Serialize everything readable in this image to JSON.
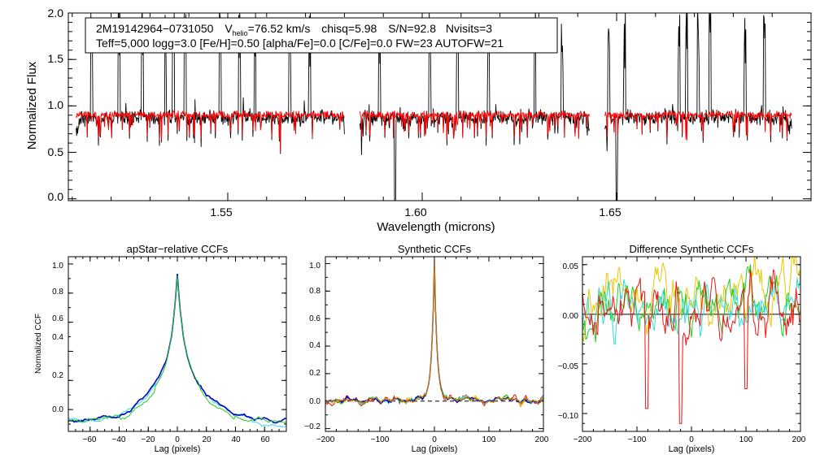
{
  "main_panel": {
    "ylabel": "Normalized Flux",
    "xlabel": "Wavelength (microns)",
    "ytick_labels": [
      "0.0",
      "0.5",
      "1.0",
      "1.5",
      "2.0"
    ],
    "xtick_labels": [
      "1.55",
      "1.60",
      "1.65"
    ],
    "info": {
      "star_id": "2M19142964−0731050",
      "v_prefix": "V",
      "v_sub": "helio",
      "v_value": "=76.52 km/s",
      "chisq": "chisq=5.98",
      "snr": "S/N=92.8",
      "nvisits": "Nvisits=3",
      "line2": "Teff=5,000 logg=3.0 [Fe/H]=0.50 [alpha/Fe]=0.0 [C/Fe]=0.0 FW=23 AUTOFW=21"
    }
  },
  "colors": {
    "observed": "#000000",
    "model": "#ff0000",
    "ccf_blue": "#0000cc",
    "ccf_green": "#22cc22",
    "ccf_cyan": "#33dddd",
    "ccf_yellow": "#e6c800",
    "ccf_orange": "#cc7a00",
    "ccf_red": "#ee1111"
  },
  "chart_data": [
    {
      "type": "line",
      "title": "",
      "xlabel": "Wavelength (microns)",
      "ylabel": "Normalized Flux",
      "xlim": [
        1.509,
        1.7
      ],
      "ylim": [
        -0.02,
        2.0
      ],
      "xticks": [
        1.55,
        1.6,
        1.65
      ],
      "yticks": [
        0.0,
        0.5,
        1.0,
        1.5,
        2.0
      ],
      "segments": [
        [
          1.511,
          1.58
        ],
        [
          1.584,
          1.643
        ],
        [
          1.647,
          1.695
        ]
      ],
      "series": [
        {
          "name": "observed",
          "color": "#000000",
          "continuum": 0.93
        },
        {
          "name": "model",
          "color": "#ff0000",
          "continuum": 0.96
        }
      ],
      "emission_spikes": [
        1.515,
        1.522,
        1.528,
        1.534,
        1.536,
        1.539,
        1.548,
        1.553,
        1.557,
        1.566,
        1.571,
        1.589,
        1.602,
        1.609,
        1.617,
        1.629,
        1.636,
        1.648,
        1.652,
        1.666,
        1.668,
        1.671,
        1.674,
        1.683,
        1.688
      ],
      "deep_absorption": [
        1.593,
        1.65
      ]
    },
    {
      "type": "line",
      "title": "apStar−relative CCFs",
      "xlabel": "Lag (pixels)",
      "ylabel": "Normalized CCF",
      "xlim": [
        -75,
        75
      ],
      "ylim": [
        -0.15,
        1.05
      ],
      "xticks": [
        -60,
        -40,
        -20,
        0,
        20,
        40,
        60
      ],
      "yticks": [
        0.0,
        0.2,
        0.4,
        0.6,
        0.8,
        1.0
      ],
      "xtick_labels": [
        "−60",
        "−40",
        "−20",
        "0",
        "20",
        "40",
        "60"
      ],
      "ytick_labels": [
        "0.0",
        "0.2",
        "0.4",
        "0.6",
        "0.8",
        "1.0"
      ],
      "series": [
        {
          "name": "cyan",
          "color": "#33dddd"
        },
        {
          "name": "blue",
          "color": "#0000cc"
        },
        {
          "name": "green",
          "color": "#22cc22"
        }
      ]
    },
    {
      "type": "line",
      "title": "Synthetic CCFs",
      "xlabel": "Lag (pixels)",
      "ylabel": "",
      "xlim": [
        -200,
        200
      ],
      "ylim": [
        -0.22,
        1.05
      ],
      "xticks": [
        -200,
        -100,
        0,
        100,
        200
      ],
      "yticks": [
        -0.2,
        0.0,
        0.2,
        0.4,
        0.6,
        0.8,
        1.0
      ],
      "xtick_labels": [
        "−200",
        "−100",
        "0",
        "100",
        "200"
      ],
      "ytick_labels": [
        "−0.2",
        "0.0",
        "0.2",
        "0.4",
        "0.6",
        "0.8",
        "1.0"
      ],
      "reference_line": 0.0,
      "series": [
        {
          "name": "red",
          "color": "#ee1111"
        },
        {
          "name": "yellow",
          "color": "#e6c800"
        },
        {
          "name": "green",
          "color": "#22cc22"
        },
        {
          "name": "cyan",
          "color": "#33dddd"
        },
        {
          "name": "blue",
          "color": "#0000cc"
        },
        {
          "name": "orange",
          "color": "#cc7a00"
        }
      ]
    },
    {
      "type": "line",
      "title": "Difference Synthetic CCFs",
      "xlabel": "Lag (pixels)",
      "ylabel": "",
      "xlim": [
        -200,
        200
      ],
      "ylim": [
        -0.118,
        0.058
      ],
      "xticks": [
        -200,
        -100,
        0,
        100,
        200
      ],
      "yticks": [
        -0.1,
        -0.05,
        0.0,
        0.05
      ],
      "xtick_labels": [
        "−200",
        "−100",
        "0",
        "100",
        "200"
      ],
      "ytick_labels": [
        "−0.10",
        "−0.05",
        "0.00",
        "0.05"
      ],
      "reference_line": 0.0,
      "series": [
        {
          "name": "yellow",
          "color": "#e6c800"
        },
        {
          "name": "green",
          "color": "#22cc22"
        },
        {
          "name": "cyan",
          "color": "#33dddd"
        },
        {
          "name": "red",
          "color": "#ee1111"
        }
      ]
    }
  ]
}
